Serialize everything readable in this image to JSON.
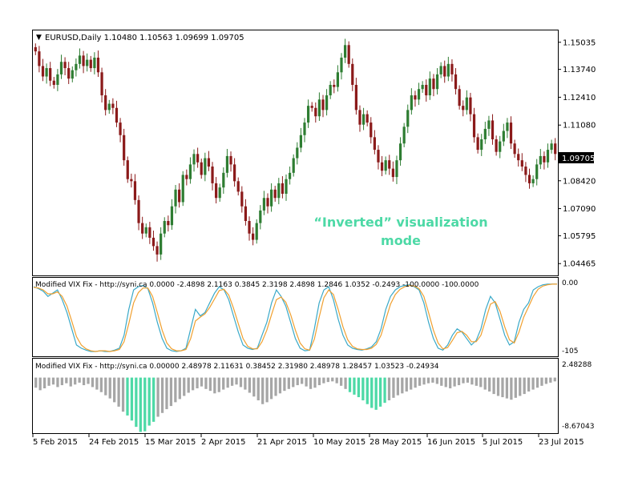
{
  "main": {
    "symbol_line": "EURUSD,Daily  1.10480 1.10563 1.09699 1.09705",
    "price_ticks": [
      "1.15035",
      "1.13740",
      "1.12410",
      "1.11080",
      "1.09705",
      "1.08420",
      "1.07090",
      "1.05795",
      "1.04465"
    ],
    "current_price": "1.09705",
    "annotation": [
      "“Inverted” visualization",
      "mode"
    ]
  },
  "indicator1": {
    "header": "Modified VIX Fix - http://syni.ca 0.0000  -2.4898 2.1163 0.3845 2.3198 2.4898 1.2846 1.0352 -0.2493 -100.0000 -100.0000",
    "ticks": [
      "0.00",
      "-105"
    ]
  },
  "indicator2": {
    "header": "Modified VIX Fix - http://syni.ca 0.00000 2.48978 2.11631 0.38452 2.31980 2.48978 1.28457 1.03523 -0.24934",
    "ticks": [
      "2.48288",
      "-8.67043"
    ]
  },
  "x_ticks": [
    "5 Feb 2015",
    "24 Feb 2015",
    "15 Mar 2015",
    "2 Apr 2015",
    "21 Apr 2015",
    "10 May 2015",
    "28 May 2015",
    "16 Jun 2015",
    "5 Jul 2015",
    "23 Jul 2015"
  ],
  "colors": {
    "bull": "#2e7d32",
    "bear": "#8b1a1a",
    "hist_normal": "#a6a6a6",
    "hist_highlight": "#4dd9a6",
    "vix_line": "#3aa9c8",
    "vix_signal": "#f0a030",
    "annotation": "#4dd9a6"
  },
  "chart_data": [
    {
      "type": "candlestick",
      "title": "EURUSD,Daily  1.10480 1.10563 1.09699 1.09705",
      "ylim": [
        1.039,
        1.156
      ],
      "x_labels": [
        "5 Feb 2015",
        "24 Feb 2015",
        "15 Mar 2015",
        "2 Apr 2015",
        "21 Apr 2015",
        "10 May 2015",
        "28 May 2015",
        "16 Jun 2015",
        "5 Jul 2015",
        "23 Jul 2015"
      ],
      "close": [
        1.146,
        1.139,
        1.134,
        1.138,
        1.132,
        1.13,
        1.135,
        1.141,
        1.138,
        1.133,
        1.137,
        1.14,
        1.144,
        1.139,
        1.142,
        1.138,
        1.143,
        1.136,
        1.125,
        1.118,
        1.121,
        1.119,
        1.112,
        1.106,
        1.094,
        1.085,
        1.084,
        1.075,
        1.064,
        1.059,
        1.062,
        1.057,
        1.053,
        1.049,
        1.059,
        1.065,
        1.063,
        1.072,
        1.08,
        1.074,
        1.087,
        1.085,
        1.092,
        1.097,
        1.093,
        1.087,
        1.095,
        1.091,
        1.083,
        1.076,
        1.081,
        1.088,
        1.096,
        1.092,
        1.084,
        1.079,
        1.072,
        1.065,
        1.059,
        1.056,
        1.064,
        1.07,
        1.076,
        1.072,
        1.08,
        1.076,
        1.083,
        1.078,
        1.085,
        1.088,
        1.095,
        1.1,
        1.106,
        1.112,
        1.12,
        1.119,
        1.115,
        1.123,
        1.118,
        1.125,
        1.13,
        1.129,
        1.136,
        1.143,
        1.149,
        1.14,
        1.13,
        1.118,
        1.111,
        1.116,
        1.112,
        1.105,
        1.099,
        1.093,
        1.089,
        1.094,
        1.09,
        1.086,
        1.094,
        1.102,
        1.11,
        1.118,
        1.125,
        1.123,
        1.128,
        1.13,
        1.125,
        1.133,
        1.128,
        1.135,
        1.139,
        1.134,
        1.14,
        1.135,
        1.128,
        1.12,
        1.118,
        1.124,
        1.116,
        1.105,
        1.099,
        1.104,
        1.109,
        1.113,
        1.104,
        1.098,
        1.103,
        1.108,
        1.112,
        1.102,
        1.097,
        1.094,
        1.091,
        1.087,
        1.083,
        1.085,
        1.092,
        1.096,
        1.093,
        1.099,
        1.102,
        1.097
      ],
      "notes": "Open of each candle = previous close; bull candles where close > open."
    },
    {
      "type": "line",
      "title": "Modified VIX Fix - http://syni.ca 0.0000  -2.4898 2.1163 0.3845 2.3198 2.4898 1.2846 1.0352 -0.2493 -100.0000 -100.0000",
      "ylim": [
        -110,
        5
      ],
      "series": [
        {
          "values": [
            -5,
            -8,
            -12,
            -20,
            -15,
            -10,
            -25,
            -45,
            -70,
            -95,
            -100,
            -103,
            -105,
            -105,
            -104,
            -105,
            -105,
            -103,
            -100,
            -80,
            -40,
            -10,
            -5,
            -3,
            -8,
            -30,
            -60,
            -85,
            -100,
            -104,
            -105,
            -104,
            -100,
            -70,
            -40,
            -50,
            -45,
            -30,
            -15,
            -5,
            -10,
            -25,
            -50,
            -75,
            -95,
            -100,
            -102,
            -100,
            -80,
            -60,
            -30,
            -10,
            -20,
            -35,
            -60,
            -85,
            -100,
            -104,
            -103,
            -70,
            -30,
            -10,
            -5,
            -25,
            -55,
            -80,
            -95,
            -100,
            -102,
            -103,
            -101,
            -98,
            -90,
            -70,
            -40,
            -20,
            -10,
            -5,
            -3,
            -2,
            -5,
            -10,
            -30,
            -60,
            -85,
            -100,
            -103,
            -95,
            -80,
            -70,
            -75,
            -85,
            -95,
            -88,
            -70,
            -40,
            -20,
            -30,
            -55,
            -80,
            -95,
            -90,
            -60,
            -40,
            -30,
            -10,
            -5,
            -2,
            -1,
            -1,
            -1
          ]
        },
        {
          "values": [
            -6,
            -7,
            -10,
            -16,
            -16,
            -13,
            -20,
            -35,
            -58,
            -82,
            -95,
            -101,
            -104,
            -105,
            -104,
            -104,
            -105,
            -104,
            -102,
            -90,
            -62,
            -30,
            -14,
            -7,
            -7,
            -20,
            -45,
            -72,
            -92,
            -101,
            -104,
            -104,
            -102,
            -85,
            -58,
            -52,
            -47,
            -37,
            -24,
            -11,
            -9,
            -18,
            -38,
            -62,
            -85,
            -97,
            -101,
            -101,
            -90,
            -72,
            -48,
            -25,
            -21,
            -29,
            -48,
            -72,
            -92,
            -101,
            -103,
            -86,
            -52,
            -22,
            -10,
            -17,
            -40,
            -67,
            -87,
            -97,
            -101,
            -102,
            -102,
            -100,
            -94,
            -80,
            -56,
            -32,
            -17,
            -9,
            -5,
            -3,
            -4,
            -8,
            -20,
            -45,
            -72,
            -92,
            -101,
            -99,
            -88,
            -76,
            -74,
            -80,
            -90,
            -90,
            -80,
            -56,
            -32,
            -28,
            -43,
            -67,
            -87,
            -92,
            -75,
            -52,
            -36,
            -20,
            -9,
            -4,
            -2,
            -1,
            -1
          ]
        }
      ]
    },
    {
      "type": "bar",
      "title": "Modified VIX Fix - http://syni.ca 0.00000 2.48978 2.11631 0.38452 2.31980 2.48978 1.28457 1.03523 -0.24934",
      "ylim": [
        -8.67043,
        2.48288
      ],
      "series": [
        {
          "values": [
            -1.6,
            -2.0,
            -1.7,
            -1.3,
            -1.1,
            -1.5,
            -1.2,
            -0.9,
            -1.4,
            -1.1,
            -0.8,
            -1.2,
            -1.0,
            -1.5,
            -1.9,
            -2.3,
            -2.8,
            -3.3,
            -3.9,
            -4.6,
            -5.4,
            -6.0,
            -6.8,
            -7.8,
            -8.6,
            -8.5,
            -7.6,
            -7.0,
            -6.2,
            -5.6,
            -5.0,
            -4.5,
            -3.9,
            -3.4,
            -2.9,
            -2.4,
            -2.0,
            -1.7,
            -1.4,
            -1.8,
            -2.1,
            -2.5,
            -2.3,
            -1.9,
            -1.6,
            -1.3,
            -1.1,
            -1.5,
            -1.9,
            -2.4,
            -3.0,
            -3.6,
            -4.2,
            -3.9,
            -3.4,
            -2.9,
            -2.5,
            -2.1,
            -1.8,
            -1.5,
            -1.2,
            -1.0,
            -1.4,
            -1.8,
            -1.6,
            -1.2,
            -0.9,
            -0.7,
            -0.6,
            -0.9,
            -1.3,
            -1.8,
            -2.3,
            -2.7,
            -3.1,
            -3.6,
            -4.2,
            -4.8,
            -5.1,
            -4.6,
            -4.0,
            -3.6,
            -3.2,
            -2.8,
            -2.5,
            -2.2,
            -1.9,
            -1.6,
            -1.3,
            -1.1,
            -0.9,
            -0.8,
            -1.0,
            -1.3,
            -1.5,
            -1.7,
            -1.4,
            -1.2,
            -0.9,
            -0.8,
            -1.1,
            -1.3,
            -1.5,
            -1.9,
            -2.2,
            -2.6,
            -2.9,
            -3.1,
            -3.3,
            -3.5,
            -3.2,
            -2.9,
            -2.6,
            -2.2,
            -1.9,
            -1.6,
            -1.3,
            -1.0,
            -0.8,
            -0.6
          ]
        }
      ],
      "highlight_ranges": [
        [
          21,
          27
        ],
        [
          72,
          80
        ]
      ]
    }
  ]
}
